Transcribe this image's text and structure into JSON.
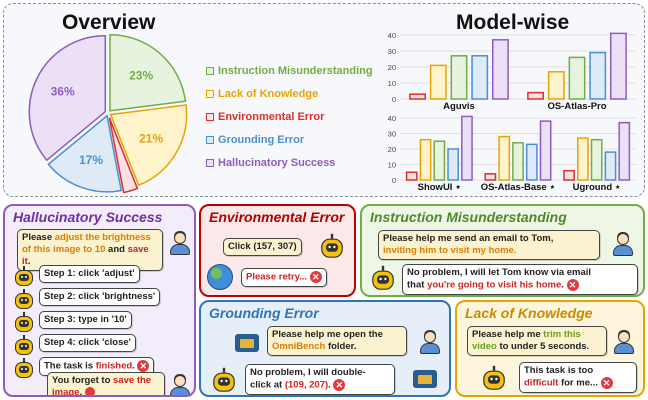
{
  "overview": {
    "title": "Overview",
    "pie": [
      {
        "label": "Instruction Misunderstanding",
        "value": 23,
        "text": "23%",
        "color": "#70ad47",
        "fill": "#e8f3df"
      },
      {
        "label": "Lack of Knowledge",
        "value": 21,
        "text": "21%",
        "color": "#e7a400",
        "fill": "#fff3cc"
      },
      {
        "label": "Environmental Error",
        "value": 3,
        "text": "3%",
        "color": "#d83030",
        "fill": "#fbe1e1"
      },
      {
        "label": "Grounding Error",
        "value": 17,
        "text": "17%",
        "color": "#4a90d0",
        "fill": "#deebf7"
      },
      {
        "label": "Hallucinatory Success",
        "value": 36,
        "text": "36%",
        "color": "#8e5cc0",
        "fill": "#ece0f7"
      }
    ]
  },
  "model_wise": {
    "title": "Model-wise"
  },
  "chart_data": [
    {
      "type": "bar",
      "categories": [
        "Aguvis",
        "OS-Atlas-Pro"
      ],
      "series": [
        {
          "values": [
            3,
            4
          ]
        },
        {
          "values": [
            21,
            17
          ]
        },
        {
          "values": [
            27,
            26
          ]
        },
        {
          "values": [
            27,
            29
          ]
        },
        {
          "values": [
            37,
            41
          ]
        }
      ],
      "ylim": [
        0,
        40
      ],
      "yticks": [
        "0",
        "10",
        "20",
        "30",
        "40"
      ]
    },
    {
      "type": "bar",
      "categories": [
        "ShowUI ⋆",
        "OS-Atlas-Base ⋆",
        "Uground ⋆"
      ],
      "series": [
        {
          "values": [
            5,
            4,
            6
          ]
        },
        {
          "values": [
            26,
            28,
            27
          ]
        },
        {
          "values": [
            25,
            24,
            26
          ]
        },
        {
          "values": [
            20,
            23,
            18
          ]
        },
        {
          "values": [
            41,
            38,
            37
          ]
        }
      ],
      "ylim": [
        0,
        40
      ],
      "yticks": [
        "0",
        "10",
        "20",
        "30",
        "40"
      ]
    }
  ],
  "hallucinatory": {
    "title": "Hallucinatory Success",
    "request_pre": "Please ",
    "request_hl": "adjust the brightness of this image to 10",
    "request_mid": " and ",
    "request_hl2": "save it",
    "request_post": ".",
    "steps": [
      "Step 1: click 'adjust'",
      "Step 2: click 'brightness'",
      "Step 3: type in '10'",
      "Step 4: click 'close'"
    ],
    "finish_pre": "The task is ",
    "finish_hl": "finished",
    "finish_post": ".",
    "reply_pre": "You forget to ",
    "reply_hl": "save the image",
    "reply_post": "."
  },
  "environmental": {
    "title": "Environmental Error",
    "click": "Click (157, 307)",
    "retry": "Please retry..."
  },
  "instruction": {
    "title": "Instruction Misunderstanding",
    "request_line1": "Please help me send an email to Tom,",
    "request_line2": "inviting him to visit my home.",
    "reply_line1": "No problem, I will let Tom know via email",
    "reply_pre": "that ",
    "reply_hl": "you're going to visit his home",
    "reply_post": "."
  },
  "grounding": {
    "title": "Grounding Error",
    "request_line1": "Please help me open the",
    "request_hl": "OmniBench",
    "request_post": " folder.",
    "reply_line1": "No problem, I will double-",
    "reply_pre": "click at ",
    "reply_hl": "(109, 207)",
    "reply_post": "."
  },
  "knowledge": {
    "title": "Lack of Knowledge",
    "request_pre": "Please help me ",
    "request_hl": "trim this video",
    "request_post": " to under 5 seconds.",
    "reply_line1": "This task is too",
    "reply_hl": "difficult",
    "reply_post": " for me..."
  }
}
